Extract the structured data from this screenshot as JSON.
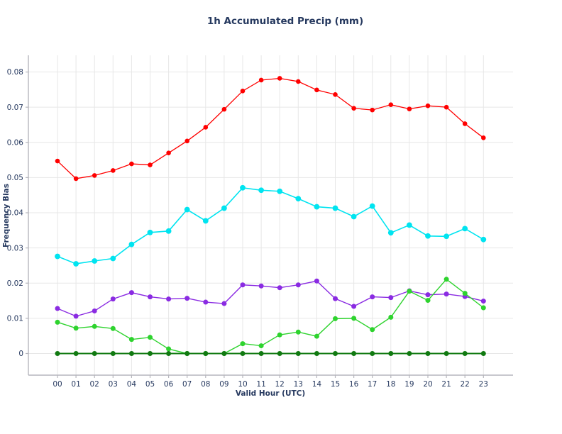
{
  "title": "1h Accumulated Precip (mm)",
  "chart_data": {
    "type": "line",
    "title": "1h Accumulated Precip (mm)",
    "xlabel": "Valid Hour (UTC)",
    "ylabel": "Frequency Bias",
    "categories": [
      "00",
      "01",
      "02",
      "03",
      "04",
      "05",
      "06",
      "07",
      "08",
      "09",
      "10",
      "11",
      "12",
      "13",
      "14",
      "15",
      "16",
      "17",
      "18",
      "19",
      "20",
      "21",
      "22",
      "23"
    ],
    "y_ticks": [
      "0",
      "0.01",
      "0.02",
      "0.03",
      "0.04",
      "0.05",
      "0.06",
      "0.07",
      "0.08"
    ],
    "ylim": [
      -0.0065,
      0.0835
    ],
    "grid": true,
    "legend": "none",
    "colors": {
      "text": "#26395f",
      "grid": "#e7e7e7",
      "spine": "#b6b6bd"
    },
    "series": [
      {
        "name": "red",
        "color": "#ff0000",
        "values": [
          0.0547,
          0.0497,
          0.0506,
          0.052,
          0.0539,
          0.0536,
          0.057,
          0.0604,
          0.0643,
          0.0694,
          0.0746,
          0.0777,
          0.0782,
          0.0773,
          0.0749,
          0.0736,
          0.0697,
          0.0692,
          0.0707,
          0.0695,
          0.0704,
          0.07,
          0.0653,
          0.0613
        ]
      },
      {
        "name": "cyan",
        "color": "#00e4f0",
        "values": [
          0.0276,
          0.0255,
          0.0263,
          0.027,
          0.031,
          0.0344,
          0.0348,
          0.0409,
          0.0377,
          0.0413,
          0.0471,
          0.0464,
          0.0461,
          0.044,
          0.0417,
          0.0413,
          0.0389,
          0.0419,
          0.0343,
          0.0365,
          0.0334,
          0.0333,
          0.0355,
          0.0324
        ]
      },
      {
        "name": "purple",
        "color": "#8a2be2",
        "values": [
          0.0128,
          0.0106,
          0.0121,
          0.0155,
          0.0173,
          0.0161,
          0.0155,
          0.0157,
          0.0146,
          0.0142,
          0.0195,
          0.0192,
          0.0187,
          0.0195,
          0.0206,
          0.0156,
          0.0134,
          0.0161,
          0.0159,
          0.0178,
          0.0167,
          0.0169,
          0.0162,
          0.0149
        ]
      },
      {
        "name": "green",
        "color": "#2ed32e",
        "values": [
          0.0089,
          0.0072,
          0.0077,
          0.0071,
          0.004,
          0.0046,
          0.0013,
          0.0,
          0.0,
          0.0,
          0.0028,
          0.0022,
          0.0053,
          0.0061,
          0.0049,
          0.0099,
          0.01,
          0.0068,
          0.0103,
          0.0177,
          0.0151,
          0.0211,
          0.0171,
          0.013
        ]
      },
      {
        "name": "dark-green",
        "color": "#117a11",
        "values": [
          0.0,
          0.0,
          0.0,
          0.0,
          0.0,
          0.0,
          0.0,
          0.0,
          0.0,
          0.0,
          0.0,
          0.0,
          0.0,
          0.0,
          0.0,
          0.0,
          0.0,
          0.0,
          0.0,
          0.0,
          0.0,
          0.0,
          0.0,
          0.0
        ]
      }
    ]
  }
}
